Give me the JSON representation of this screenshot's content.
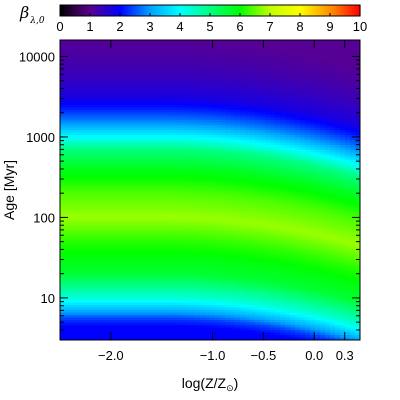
{
  "chart_data": {
    "type": "heatmap",
    "colorbar": {
      "label_main": "β",
      "label_sub": "λ,0",
      "range": [
        0,
        10
      ],
      "ticks": [
        "0",
        "1",
        "2",
        "3",
        "4",
        "5",
        "6",
        "7",
        "8",
        "9",
        "10"
      ],
      "colormap": [
        "#000000",
        "#5a0090",
        "#0000ff",
        "#00a0ff",
        "#00ffff",
        "#00ff80",
        "#00ff00",
        "#c0ff00",
        "#ffff00",
        "#ff9000",
        "#ff0000"
      ]
    },
    "x_axis": {
      "label_main": "log(Z/Z",
      "label_sub": "⊙",
      "label_close": ")",
      "range": [
        -2.5,
        0.45
      ],
      "ticks": [
        {
          "value": -2.0,
          "label": "−2.0"
        },
        {
          "value": -1.0,
          "label": "−1.0"
        },
        {
          "value": -0.5,
          "label": "−0.5"
        },
        {
          "value": 0.0,
          "label": "0.0"
        },
        {
          "value": 0.3,
          "label": "0.3"
        }
      ]
    },
    "y_axis": {
      "label_main": "Age",
      "label_unit": "Myr",
      "scale": "log",
      "range": [
        3,
        16000
      ],
      "ticks": [
        {
          "value": 10,
          "label": "10"
        },
        {
          "value": 100,
          "label": "100"
        },
        {
          "value": 1000,
          "label": "1000"
        },
        {
          "value": 10000,
          "label": "10000"
        }
      ]
    },
    "grid": false,
    "profile_ages_myr": [
      3,
      4.5,
      5.5,
      7,
      10,
      20,
      50,
      100,
      200,
      400,
      700,
      1000,
      1500,
      2200,
      3000,
      5000,
      8000,
      16000
    ],
    "profile_beta": [
      2.0,
      2.0,
      2.4,
      3.2,
      4.3,
      5.6,
      6.2,
      6.8,
      6.4,
      5.8,
      5.0,
      4.0,
      2.9,
      2.2,
      1.75,
      1.45,
      1.25,
      1.05
    ]
  }
}
